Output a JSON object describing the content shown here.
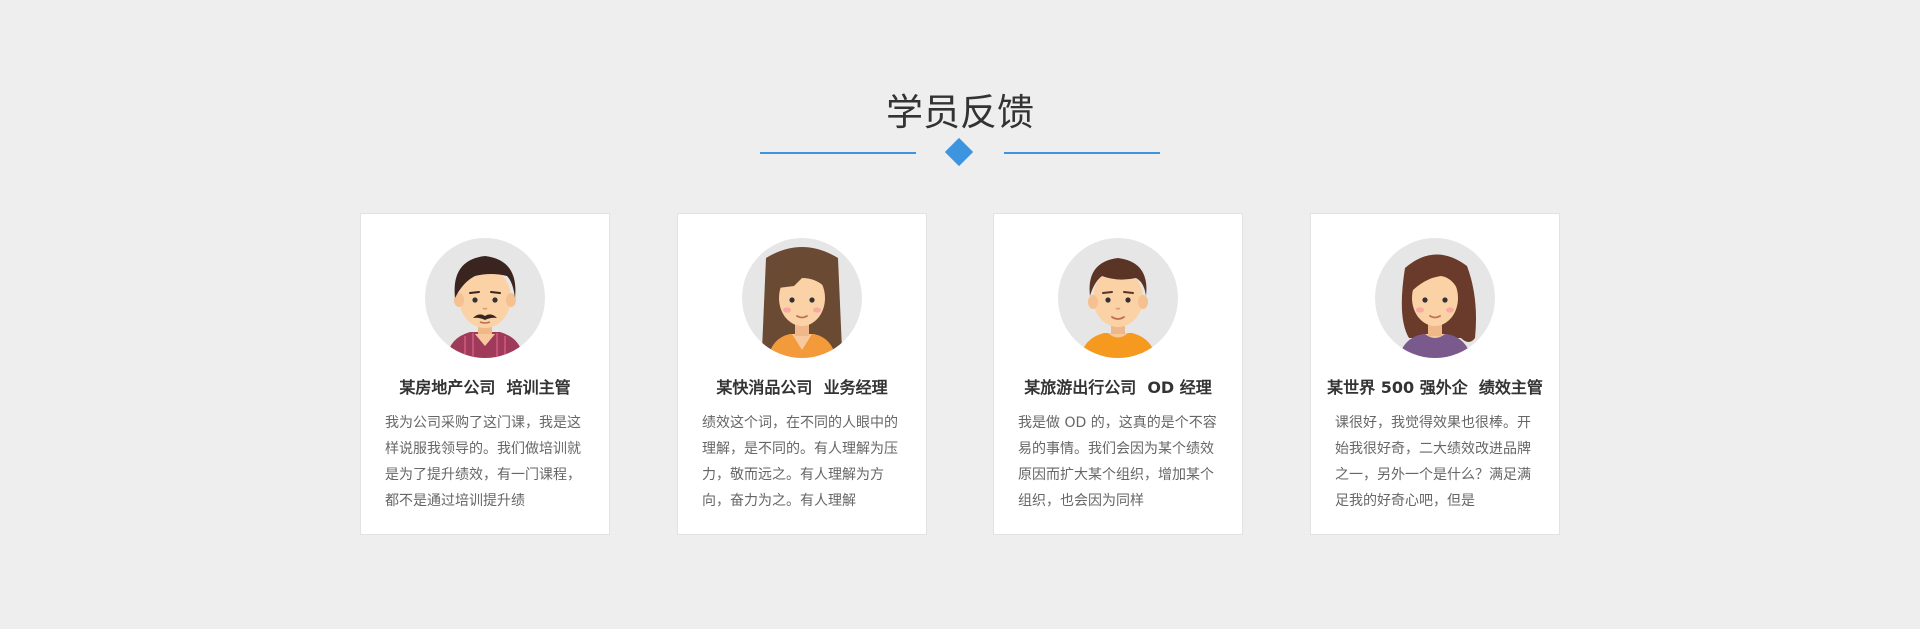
{
  "section": {
    "title": "学员反馈"
  },
  "testimonials": [
    {
      "name": "某房地产公司  培训主管",
      "text": "我为公司采购了这门课，我是这样说服我领导的。我们做培训就是为了提升绩效，有一门课程，都不是通过培训提升绩",
      "avatar_icon": "man-mustache-avatar-icon",
      "shirt_color": "#a03a5a"
    },
    {
      "name": "某快消品公司  业务经理",
      "text": "绩效这个词，在不同的人眼中的理解，是不同的。有人理解为压力，敬而远之。有人理解为方向，奋力为之。有人理解",
      "avatar_icon": "woman-long-hair-avatar-icon",
      "shirt_color": "#f39a3a"
    },
    {
      "name": "某旅游出行公司  OD 经理",
      "text": "我是做 OD 的，这真的是个不容易的事情。我们会因为某个绩效原因而扩大某个组织，增加某个组织，也会因为同样",
      "avatar_icon": "young-man-avatar-icon",
      "shirt_color": "#f59a1e"
    },
    {
      "name": "某世界 500 强外企  绩效主管",
      "text": "课很好，我觉得效果也很棒。开始我很好奇，二大绩效改进品牌之一，另外一个是什么？满足满足我的好奇心吧，但是",
      "avatar_icon": "woman-wavy-hair-avatar-icon",
      "shirt_color": "#7a5a8c"
    }
  ]
}
